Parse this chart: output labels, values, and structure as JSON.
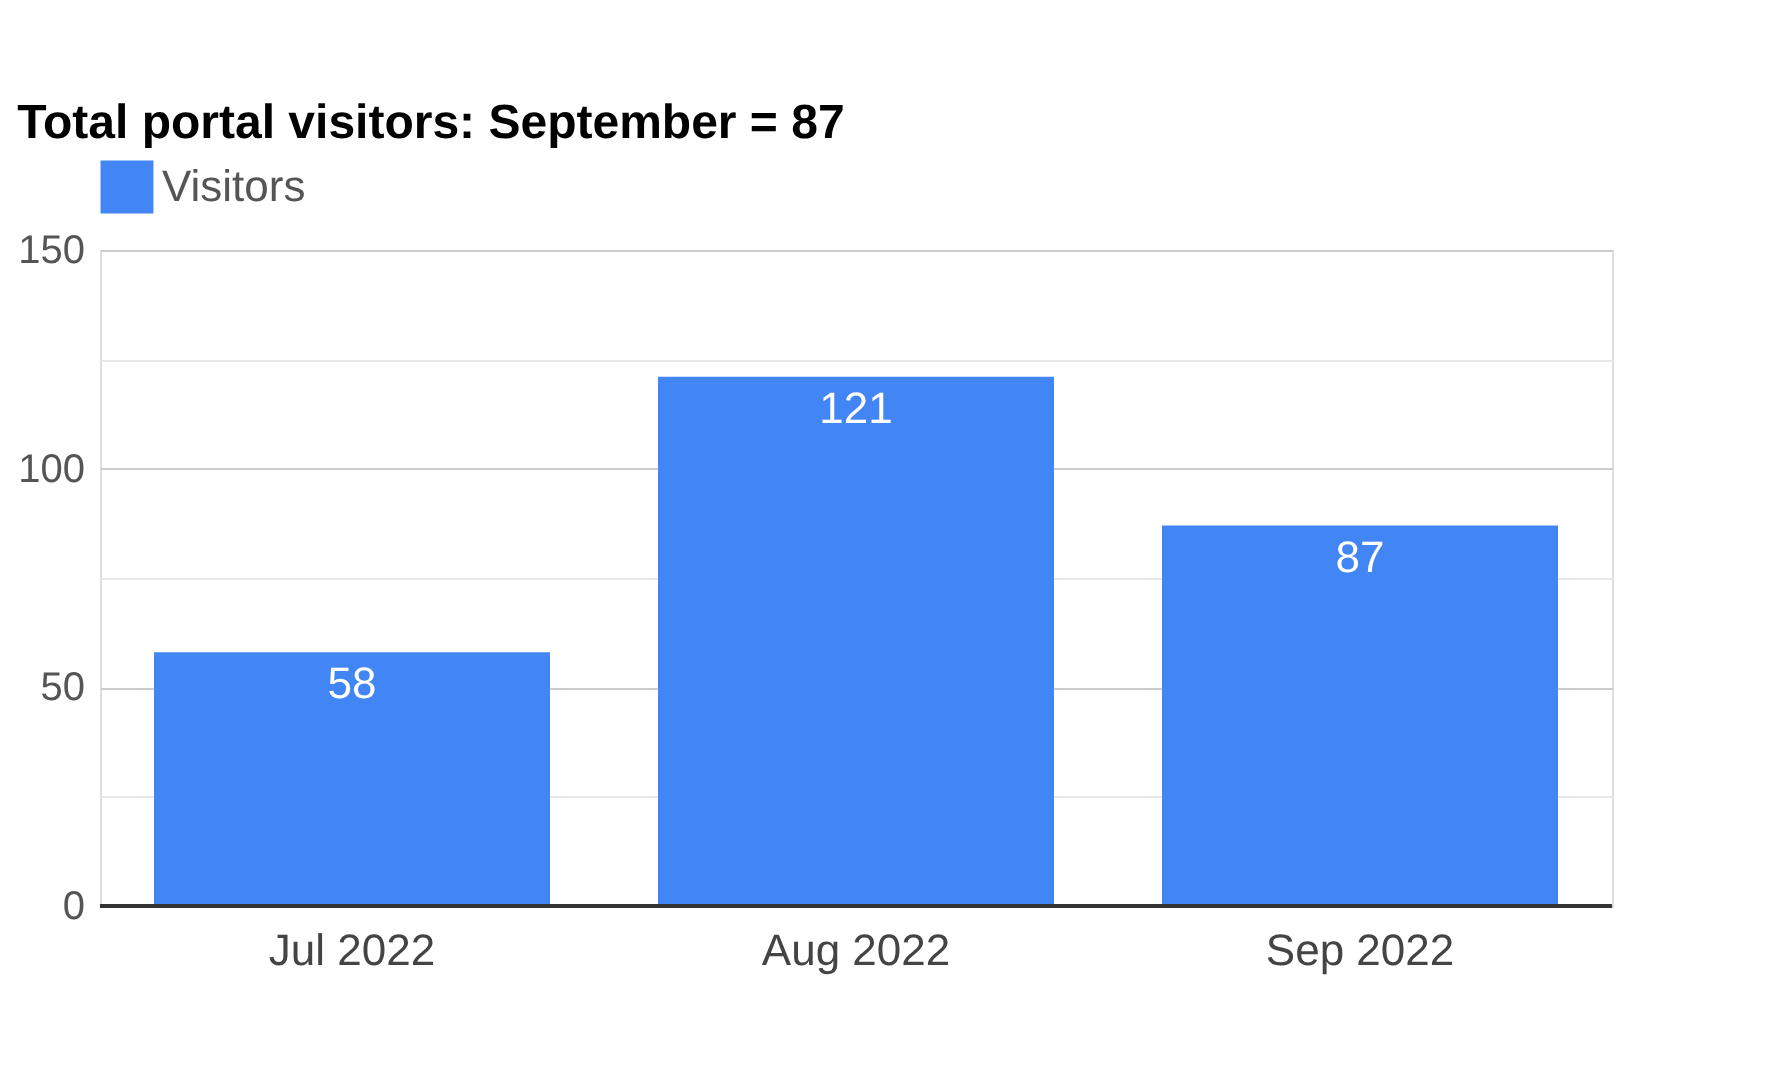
{
  "chart_data": {
    "type": "bar",
    "title": "Total portal visitors: September = 87",
    "categories": [
      "Jul 2022",
      "Aug 2022",
      "Sep 2022"
    ],
    "series": [
      {
        "name": "Visitors",
        "color": "#4285f4",
        "values": [
          58,
          121,
          87
        ]
      }
    ],
    "ylim": [
      0,
      150
    ],
    "yticks": [
      0,
      {
        "value": 25,
        "label": null
      },
      50,
      {
        "value": 75,
        "label": null
      },
      100,
      {
        "value": 125,
        "label": null
      },
      150
    ],
    "grid": "y",
    "legend": "top left",
    "data_labels": true
  }
}
